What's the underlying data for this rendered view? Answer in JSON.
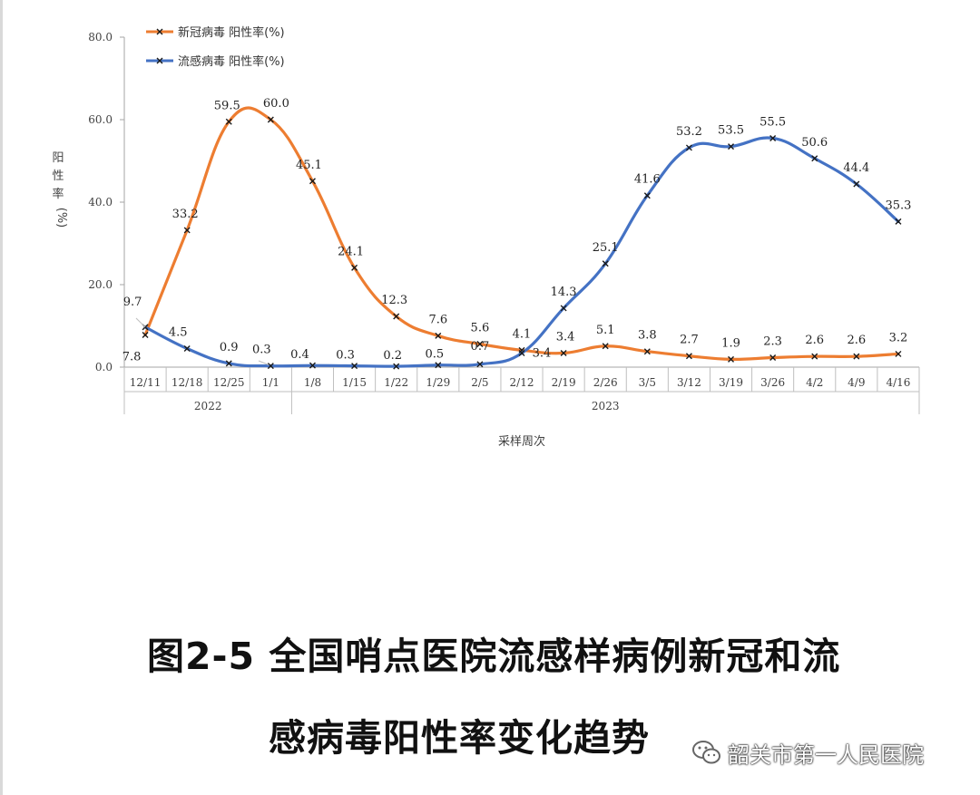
{
  "chart_data": {
    "type": "line",
    "title": "",
    "xlabel": "采样周次",
    "ylabel": "阳性率(%)",
    "ylabel_chars": [
      "阳",
      "性",
      "率",
      "(%)"
    ],
    "ylim": [
      0,
      80
    ],
    "yticks": [
      "0.0",
      "20.0",
      "40.0",
      "60.0",
      "80.0"
    ],
    "grid": false,
    "legend_position": "top-left",
    "categories": [
      "12/11",
      "12/18",
      "12/25",
      "1/1",
      "1/8",
      "1/15",
      "1/22",
      "1/29",
      "2/5",
      "2/12",
      "2/19",
      "2/26",
      "3/5",
      "3/12",
      "3/19",
      "3/26",
      "4/2",
      "4/9",
      "4/16"
    ],
    "year_groups": [
      {
        "label": "2022",
        "count": 4
      },
      {
        "label": "2023",
        "count": 15
      }
    ],
    "series": [
      {
        "name": "新冠病毒 阳性率(%)",
        "color": "#ED7D31",
        "values": [
          7.8,
          33.2,
          59.5,
          60.0,
          45.1,
          24.1,
          12.3,
          7.6,
          5.6,
          4.1,
          3.4,
          5.1,
          3.8,
          2.7,
          1.9,
          2.3,
          2.6,
          2.6,
          3.2
        ],
        "labels": [
          "7.8",
          "33.2",
          "59.5",
          "60.0",
          "45.1",
          "24.1",
          "12.3",
          "7.6",
          "5.6",
          "4.1",
          "3.4",
          "5.1",
          "3.8",
          "2.7",
          "1.9",
          "2.3",
          "2.6",
          "2.6",
          "3.2"
        ]
      },
      {
        "name": "流感病毒 阳性率(%)",
        "color": "#4472C4",
        "values": [
          9.7,
          4.5,
          0.9,
          0.3,
          0.4,
          0.3,
          0.2,
          0.5,
          0.7,
          3.4,
          14.3,
          25.1,
          41.6,
          53.2,
          53.5,
          55.5,
          50.6,
          44.4,
          35.3
        ],
        "labels": [
          "9.7",
          "4.5",
          "0.9",
          "0.3",
          "0.4",
          "0.3",
          "0.2",
          "0.5",
          "0.7",
          "3.4",
          "14.3",
          "25.1",
          "41.6",
          "53.2",
          "53.5",
          "55.5",
          "50.6",
          "44.4",
          "35.3"
        ]
      }
    ]
  },
  "caption": {
    "line1": "图2-5 全国哨点医院流感样病例新冠和流",
    "line2": "感病毒阳性率变化趋势"
  },
  "watermark": {
    "icon": "wechat-icon",
    "text": "韶关市第一人民医院"
  }
}
